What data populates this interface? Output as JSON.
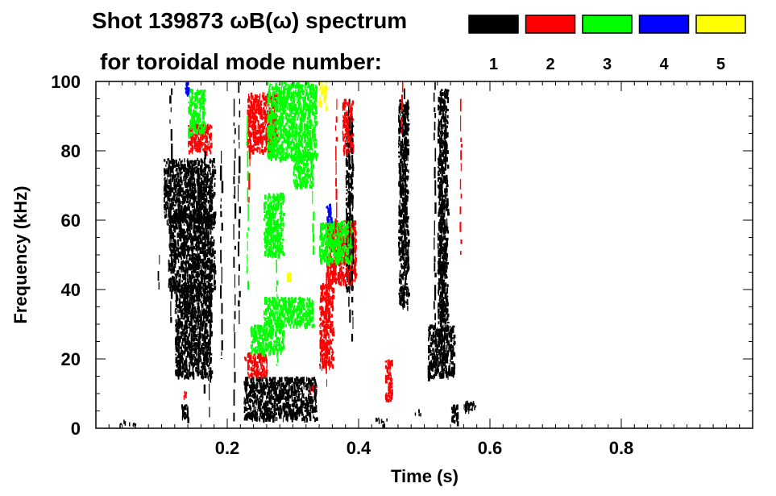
{
  "chart_data": {
    "type": "heatmap",
    "title_line1": "Shot 139873 ωB(ω) spectrum",
    "title_line2": "for toroidal mode number:",
    "xlabel": "Time (s)",
    "ylabel": "Frequency (kHz)",
    "xlim": [
      0.0,
      1.0
    ],
    "ylim": [
      0,
      100
    ],
    "x_ticks": [
      0.2,
      0.4,
      0.6,
      0.8
    ],
    "x_tick_labels": [
      "0.2",
      "0.4",
      "0.6",
      "0.8"
    ],
    "y_ticks": [
      0,
      20,
      40,
      60,
      80,
      100
    ],
    "y_tick_labels": [
      "0",
      "20",
      "40",
      "60",
      "80",
      "100"
    ],
    "legend": [
      {
        "mode": "1",
        "color": "#000000"
      },
      {
        "mode": "2",
        "color": "#ff0000"
      },
      {
        "mode": "3",
        "color": "#00ff00"
      },
      {
        "mode": "4",
        "color": "#0000ff"
      },
      {
        "mode": "5",
        "color": "#ffff00"
      }
    ],
    "regions": [
      {
        "mode": "1",
        "t": [
          0.103,
          0.18
        ],
        "f": [
          60,
          78
        ]
      },
      {
        "mode": "1",
        "t": [
          0.11,
          0.18
        ],
        "f": [
          40,
          62
        ]
      },
      {
        "mode": "1",
        "t": [
          0.12,
          0.175
        ],
        "f": [
          15,
          42
        ]
      },
      {
        "mode": "1",
        "t": [
          0.225,
          0.335
        ],
        "f": [
          3,
          15
        ]
      },
      {
        "mode": "1",
        "t": [
          0.52,
          0.535
        ],
        "f": [
          30,
          98
        ]
      },
      {
        "mode": "1",
        "t": [
          0.505,
          0.545
        ],
        "f": [
          15,
          30
        ]
      },
      {
        "mode": "1",
        "t": [
          0.54,
          0.55
        ],
        "f": [
          2,
          7
        ]
      },
      {
        "mode": "1",
        "t": [
          0.13,
          0.14
        ],
        "f": [
          3,
          7
        ]
      },
      {
        "mode": "1",
        "t": [
          0.38,
          0.39
        ],
        "f": [
          40,
          90
        ]
      },
      {
        "mode": "1",
        "t": [
          0.46,
          0.475
        ],
        "f": [
          35,
          95
        ]
      },
      {
        "mode": "1",
        "t": [
          0.56,
          0.57
        ],
        "f": [
          5,
          8
        ]
      },
      {
        "mode": "2",
        "t": [
          0.23,
          0.275
        ],
        "f": [
          80,
          97
        ]
      },
      {
        "mode": "2",
        "t": [
          0.34,
          0.36
        ],
        "f": [
          18,
          42
        ]
      },
      {
        "mode": "2",
        "t": [
          0.35,
          0.395
        ],
        "f": [
          42,
          60
        ]
      },
      {
        "mode": "2",
        "t": [
          0.23,
          0.26
        ],
        "f": [
          15,
          22
        ]
      },
      {
        "mode": "2",
        "t": [
          0.14,
          0.175
        ],
        "f": [
          80,
          88
        ]
      },
      {
        "mode": "2",
        "t": [
          0.375,
          0.39
        ],
        "f": [
          80,
          95
        ]
      },
      {
        "mode": "2",
        "t": [
          0.44,
          0.45
        ],
        "f": [
          8,
          20
        ]
      },
      {
        "mode": "3",
        "t": [
          0.26,
          0.335
        ],
        "f": [
          78,
          100
        ]
      },
      {
        "mode": "3",
        "t": [
          0.3,
          0.33
        ],
        "f": [
          70,
          80
        ]
      },
      {
        "mode": "3",
        "t": [
          0.255,
          0.33
        ],
        "f": [
          30,
          38
        ]
      },
      {
        "mode": "3",
        "t": [
          0.235,
          0.285
        ],
        "f": [
          22,
          30
        ]
      },
      {
        "mode": "3",
        "t": [
          0.34,
          0.39
        ],
        "f": [
          48,
          60
        ]
      },
      {
        "mode": "3",
        "t": [
          0.255,
          0.285
        ],
        "f": [
          50,
          68
        ]
      },
      {
        "mode": "3",
        "t": [
          0.14,
          0.165
        ],
        "f": [
          85,
          98
        ]
      },
      {
        "mode": "4",
        "t": [
          0.35,
          0.358
        ],
        "f": [
          60,
          65
        ]
      },
      {
        "mode": "4",
        "t": [
          0.135,
          0.14
        ],
        "f": [
          97,
          100
        ]
      },
      {
        "mode": "5",
        "t": [
          0.34,
          0.35
        ],
        "f": [
          93,
          100
        ]
      },
      {
        "mode": "5",
        "t": [
          0.29,
          0.295
        ],
        "f": [
          43,
          45
        ]
      }
    ],
    "streaks": [
      {
        "mode": "1",
        "t": 0.113,
        "f": [
          30,
          98
        ]
      },
      {
        "mode": "1",
        "t": 0.145,
        "f": [
          18,
          60
        ]
      },
      {
        "mode": "1",
        "t": 0.155,
        "f": [
          22,
          75
        ]
      },
      {
        "mode": "1",
        "t": 0.165,
        "f": [
          10,
          80
        ]
      },
      {
        "mode": "1",
        "t": 0.172,
        "f": [
          3,
          70
        ]
      },
      {
        "mode": "1",
        "t": 0.19,
        "f": [
          20,
          80
        ]
      },
      {
        "mode": "1",
        "t": 0.21,
        "f": [
          2,
          95
        ]
      },
      {
        "mode": "1",
        "t": 0.217,
        "f": [
          30,
          100
        ]
      },
      {
        "mode": "1",
        "t": 0.385,
        "f": [
          30,
          95
        ]
      },
      {
        "mode": "1",
        "t": 0.39,
        "f": [
          25,
          90
        ]
      },
      {
        "mode": "1",
        "t": 0.47,
        "f": [
          40,
          98
        ]
      },
      {
        "mode": "1",
        "t": 0.515,
        "f": [
          15,
          100
        ]
      },
      {
        "mode": "1",
        "t": 0.525,
        "f": [
          15,
          95
        ]
      },
      {
        "mode": "1",
        "t": 0.53,
        "f": [
          20,
          90
        ]
      },
      {
        "mode": "1",
        "t": 0.095,
        "f": [
          40,
          50
        ]
      },
      {
        "mode": "2",
        "t": 0.35,
        "f": [
          12,
          45
        ]
      },
      {
        "mode": "2",
        "t": 0.365,
        "f": [
          55,
          95
        ]
      },
      {
        "mode": "2",
        "t": 0.233,
        "f": [
          65,
          95
        ]
      },
      {
        "mode": "2",
        "t": 0.555,
        "f": [
          50,
          95
        ]
      },
      {
        "mode": "2",
        "t": 0.465,
        "f": [
          85,
          100
        ]
      },
      {
        "mode": "3",
        "t": 0.23,
        "f": [
          40,
          90
        ]
      },
      {
        "mode": "3",
        "t": 0.275,
        "f": [
          18,
          60
        ]
      },
      {
        "mode": "3",
        "t": 0.33,
        "f": [
          50,
          75
        ]
      }
    ],
    "specks": [
      {
        "mode": "1",
        "t": 0.04,
        "f": 2
      },
      {
        "mode": "1",
        "t": 0.055,
        "f": 2
      },
      {
        "mode": "1",
        "t": 0.43,
        "f": 3
      },
      {
        "mode": "1",
        "t": 0.44,
        "f": 2
      },
      {
        "mode": "1",
        "t": 0.49,
        "f": 5
      },
      {
        "mode": "1",
        "t": 0.575,
        "f": 7
      },
      {
        "mode": "2",
        "t": 0.135,
        "f": 10
      },
      {
        "mode": "2",
        "t": 0.33,
        "f": 12
      },
      {
        "mode": "2",
        "t": 0.23,
        "f": 20
      }
    ]
  }
}
